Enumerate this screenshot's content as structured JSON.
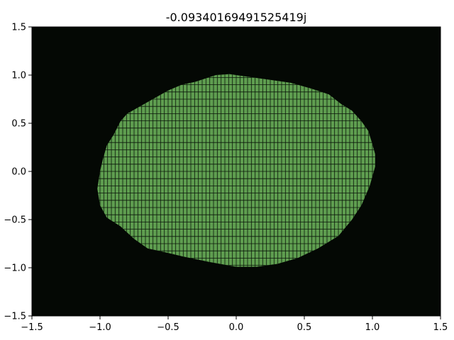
{
  "chart_data": {
    "type": "heatmap",
    "title": "-0.09340169491525419j",
    "xlabel": "",
    "ylabel": "",
    "xlim": [
      -1.5,
      1.5
    ],
    "ylim": [
      -1.5,
      1.5
    ],
    "x_ticks": [
      -1.5,
      -1.0,
      -0.5,
      0.0,
      0.5,
      1.0,
      1.5
    ],
    "x_tick_labels": [
      "−1.5",
      "−1.0",
      "−0.5",
      "0.0",
      "0.5",
      "1.0",
      "1.5"
    ],
    "y_ticks": [
      -1.5,
      -1.0,
      -0.5,
      0.0,
      0.5,
      1.0,
      1.5
    ],
    "y_tick_labels": [
      "−1.5",
      "−1.0",
      "−0.5",
      "0.0",
      "0.5",
      "1.0",
      "1.5"
    ],
    "grid": false,
    "colors": {
      "background": "#040804",
      "region": "#5f9e50",
      "cell_line": "#0b170a"
    },
    "region_boundary": [
      [
        1.02,
        0.18
      ],
      [
        1.0,
        0.28
      ],
      [
        0.97,
        0.42
      ],
      [
        0.92,
        0.52
      ],
      [
        0.85,
        0.63
      ],
      [
        0.77,
        0.7
      ],
      [
        0.68,
        0.8
      ],
      [
        0.55,
        0.86
      ],
      [
        0.4,
        0.92
      ],
      [
        0.25,
        0.95
      ],
      [
        0.1,
        0.98
      ],
      [
        -0.05,
        1.01
      ],
      [
        -0.15,
        1.0
      ],
      [
        -0.3,
        0.93
      ],
      [
        -0.4,
        0.9
      ],
      [
        -0.5,
        0.84
      ],
      [
        -0.6,
        0.76
      ],
      [
        -0.7,
        0.68
      ],
      [
        -0.8,
        0.6
      ],
      [
        -0.85,
        0.52
      ],
      [
        -0.9,
        0.38
      ],
      [
        -0.95,
        0.27
      ],
      [
        -0.98,
        0.12
      ],
      [
        -1.0,
        0.0
      ],
      [
        -1.02,
        -0.18
      ],
      [
        -1.0,
        -0.35
      ],
      [
        -0.95,
        -0.48
      ],
      [
        -0.85,
        -0.57
      ],
      [
        -0.75,
        -0.7
      ],
      [
        -0.65,
        -0.8
      ],
      [
        -0.55,
        -0.83
      ],
      [
        -0.4,
        -0.88
      ],
      [
        -0.2,
        -0.94
      ],
      [
        0.0,
        -0.99
      ],
      [
        0.15,
        -0.99
      ],
      [
        0.3,
        -0.96
      ],
      [
        0.45,
        -0.9
      ],
      [
        0.6,
        -0.8
      ],
      [
        0.75,
        -0.67
      ],
      [
        0.85,
        -0.5
      ],
      [
        0.92,
        -0.35
      ],
      [
        0.98,
        -0.15
      ],
      [
        1.02,
        0.05
      ]
    ],
    "grid_cells": {
      "columns": 108,
      "rows": 40
    }
  }
}
